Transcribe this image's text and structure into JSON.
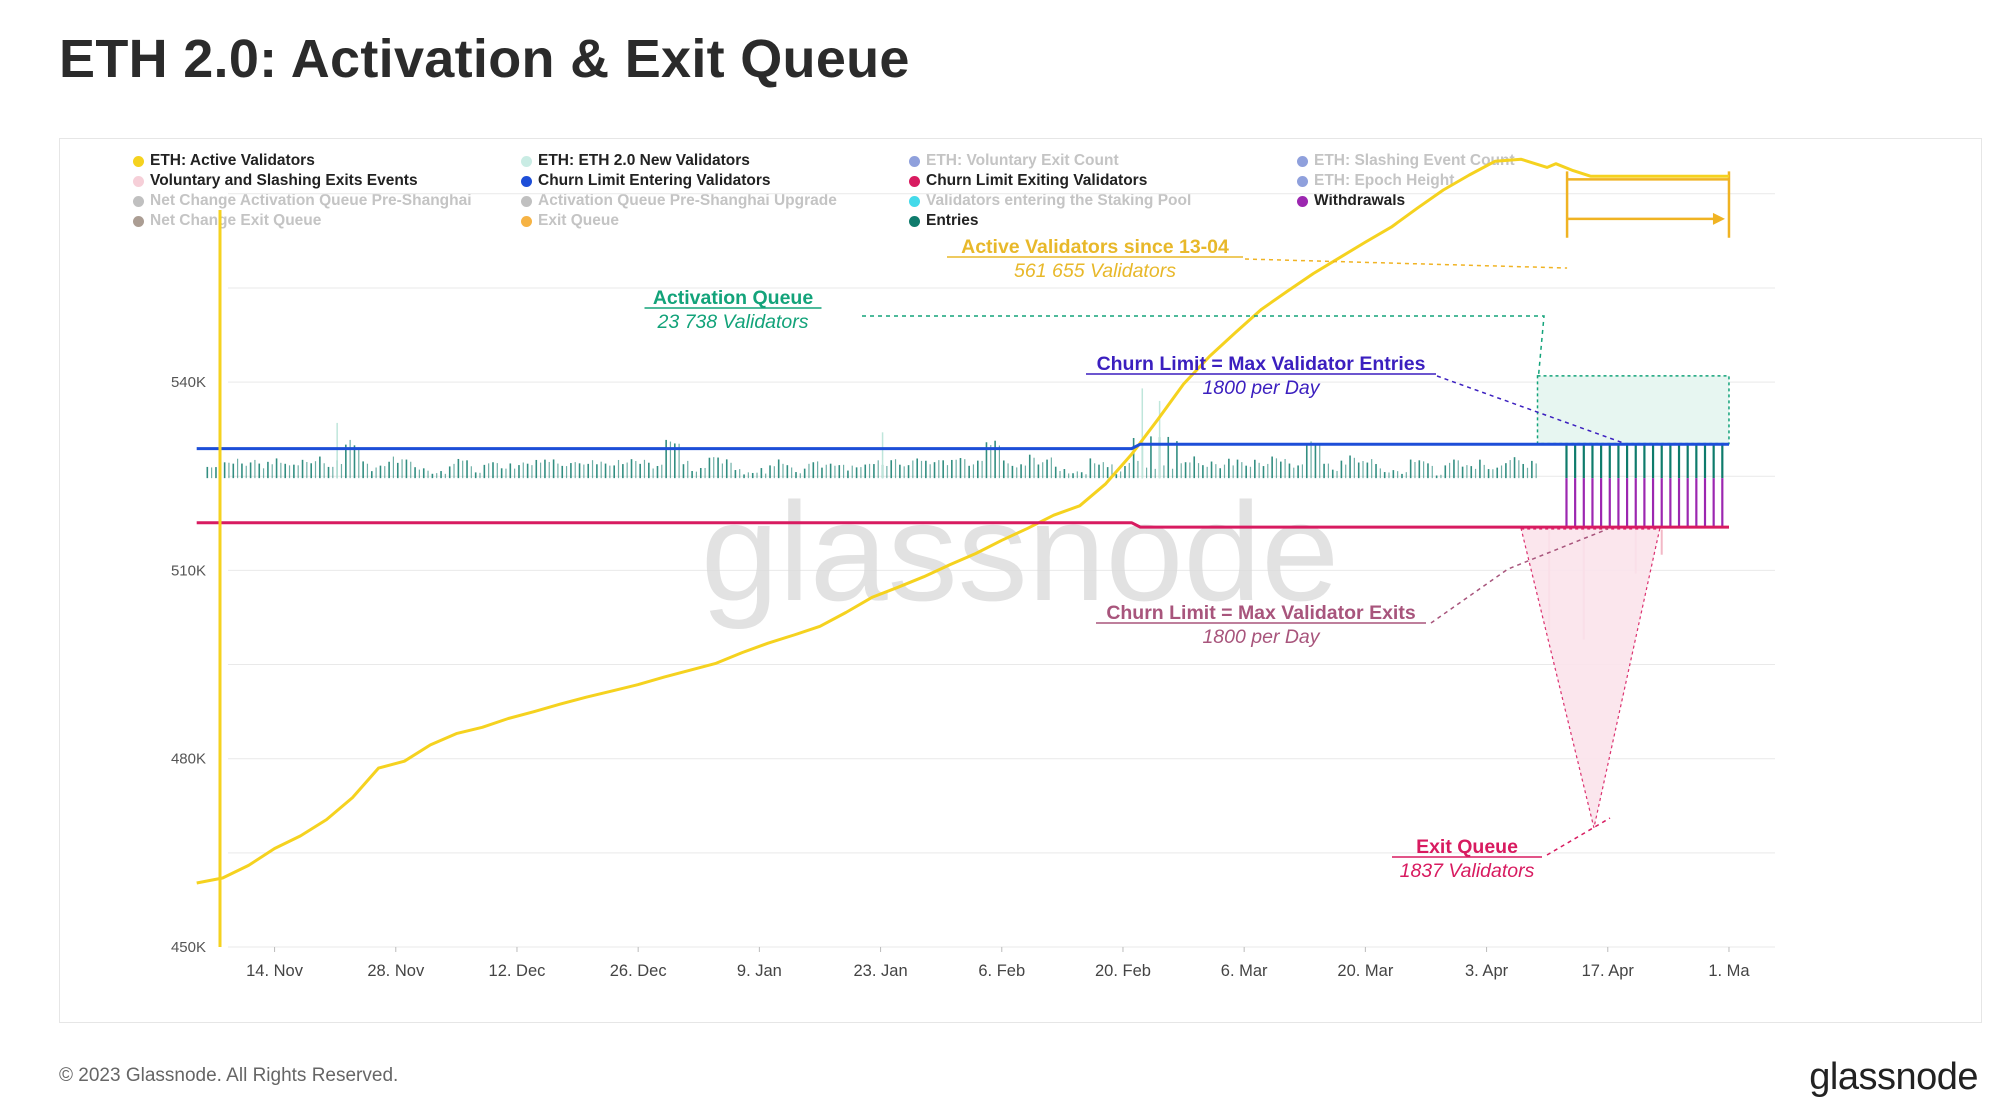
{
  "page": {
    "title": "ETH 2.0: Activation & Exit Queue",
    "copyright": "© 2023 Glassnode. All Rights Reserved.",
    "brand": "glassnode",
    "watermark": "glassnode"
  },
  "legend": [
    {
      "label": "ETH: Active Validators",
      "color": "#f5d21f",
      "active": true
    },
    {
      "label": "ETH: ETH 2.0 New Validators",
      "color": "#c9ece4",
      "active": true
    },
    {
      "label": "ETH: Voluntary Exit Count",
      "color": "#7b8fd6",
      "active": false
    },
    {
      "label": "ETH: Slashing Event Count",
      "color": "#7b8fd6",
      "active": false
    },
    {
      "label": "Voluntary and Slashing Exits Events",
      "color": "#f6cfd8",
      "active": true
    },
    {
      "label": "Churn Limit Entering Validators",
      "color": "#1d4ed8",
      "active": true
    },
    {
      "label": "Churn Limit Exiting Validators",
      "color": "#d81b60",
      "active": true
    },
    {
      "label": "ETH: Epoch Height",
      "color": "#7b8fd6",
      "active": false
    },
    {
      "label": "Net Change Activation Queue Pre-Shanghai",
      "color": "#b5b5b5",
      "active": false
    },
    {
      "label": "Activation Queue Pre-Shanghai Upgrade",
      "color": "#b5b5b5",
      "active": false
    },
    {
      "label": "Validators entering the Staking Pool",
      "color": "#22d3e6",
      "active": false
    },
    {
      "label": "Withdrawals",
      "color": "#9c27b0",
      "active": true
    },
    {
      "label": "Net Change Exit Queue",
      "color": "#9c8c80",
      "active": false
    },
    {
      "label": "Exit Queue",
      "color": "#f5a623",
      "active": false
    },
    {
      "label": "Entries",
      "color": "#0f7b6c",
      "active": true
    }
  ],
  "annotations": {
    "active_validators": {
      "title": "Active Validators since 13-04",
      "subtitle": "561 655 Validators",
      "color": "#e8b82a"
    },
    "activation_queue": {
      "title": "Activation  Queue",
      "subtitle": "23 738 Validators",
      "color": "#13a37a"
    },
    "churn_entries": {
      "title": "Churn Limit = Max Validator Entries",
      "subtitle": "1800 per Day",
      "color": "#3b1fbf"
    },
    "churn_exits": {
      "title": "Churn Limit = Max Validator Exits",
      "subtitle": "1800 per Day",
      "color": "#a8557c"
    },
    "exit_queue": {
      "title": "Exit Queue",
      "subtitle": "1837 Validators",
      "color": "#d81b60"
    }
  },
  "chart_data": {
    "type": "line",
    "title": "ETH 2.0: Activation & Exit Queue",
    "xlabel": "",
    "ylabel": "",
    "x_tick_labels": [
      "14. Nov",
      "28. Nov",
      "12. Dec",
      "26. Dec",
      "9. Jan",
      "23. Jan",
      "6. Feb",
      "20. Feb",
      "6. Mar",
      "20. Mar",
      "3. Apr",
      "17. Apr",
      "1. Ma"
    ],
    "y_tick_labels": [
      "450K",
      "480K",
      "510K",
      "540K"
    ],
    "y_ticks": [
      450000,
      480000,
      510000,
      540000
    ],
    "ylim": [
      450000,
      570000
    ],
    "xlim_days": [
      0,
      178
    ],
    "x_tick_days": [
      10,
      24,
      38,
      52,
      66,
      80,
      94,
      108,
      122,
      136,
      150,
      164,
      178
    ],
    "grid": true,
    "series": [
      {
        "name": "ETH: Active Validators",
        "color": "#f5d21f",
        "x_days": [
          1,
          4,
          7,
          10,
          13,
          16,
          19,
          22,
          25,
          28,
          31,
          34,
          37,
          40,
          43,
          46,
          49,
          52,
          55,
          58,
          61,
          64,
          67,
          70,
          73,
          76,
          79,
          82,
          85,
          88,
          91,
          94,
          97,
          100,
          103,
          106,
          109,
          112,
          115,
          118,
          121,
          124,
          127,
          130,
          133,
          136,
          139,
          142,
          145,
          148,
          151,
          154,
          157,
          158,
          160,
          162,
          178
        ],
        "values": [
          460200,
          461000,
          463000,
          465700,
          467700,
          470300,
          473800,
          478500,
          479600,
          482200,
          484000,
          485000,
          486400,
          487500,
          488700,
          489800,
          490800,
          491800,
          493000,
          494100,
          495200,
          496900,
          498400,
          499700,
          501100,
          503300,
          505700,
          507300,
          509000,
          510900,
          512700,
          514800,
          516700,
          518800,
          520300,
          523800,
          528500,
          534000,
          539700,
          544100,
          547900,
          551600,
          554500,
          557300,
          559800,
          562300,
          564700,
          567700,
          570600,
          573000,
          575200,
          575500,
          574200,
          574800,
          573700,
          572800,
          572800
        ]
      },
      {
        "name": "Churn Limit Entering Validators",
        "color": "#1d4ed8",
        "x_days": [
          1,
          109,
          110,
          178
        ],
        "values": [
          529400,
          529400,
          530100,
          530100
        ]
      },
      {
        "name": "Churn Limit Exiting Validators",
        "color": "#d81b60",
        "x_days": [
          1,
          109,
          110,
          178
        ],
        "values": [
          517600,
          517600,
          516900,
          516900
        ]
      },
      {
        "name": "Entries",
        "color": "#0f7b6c",
        "type": "bar",
        "note": "daily validator entries bars (baseline ~524.7K)",
        "baseline": 524700,
        "values_top": [
          526700,
          527100,
          526500,
          527000,
          527300,
          527600,
          526900,
          527500,
          526800,
          527300,
          527600,
          526900,
          527300,
          527000,
          527600,
          527500,
          526600,
          527300,
          530500,
          530000,
          527300,
          526300,
          526900,
          527900,
          527500,
          527700,
          526300,
          525900,
          525900,
          525900,
          527200,
          527500,
          526900,
          525700,
          526900,
          527300,
          526600
        ]
      },
      {
        "name": "Withdrawals",
        "color": "#9c27b0",
        "type": "bar",
        "note": "withdrawal bars after 13-04 (baseline ~524.7K downward)",
        "baseline": 524700
      }
    ]
  }
}
